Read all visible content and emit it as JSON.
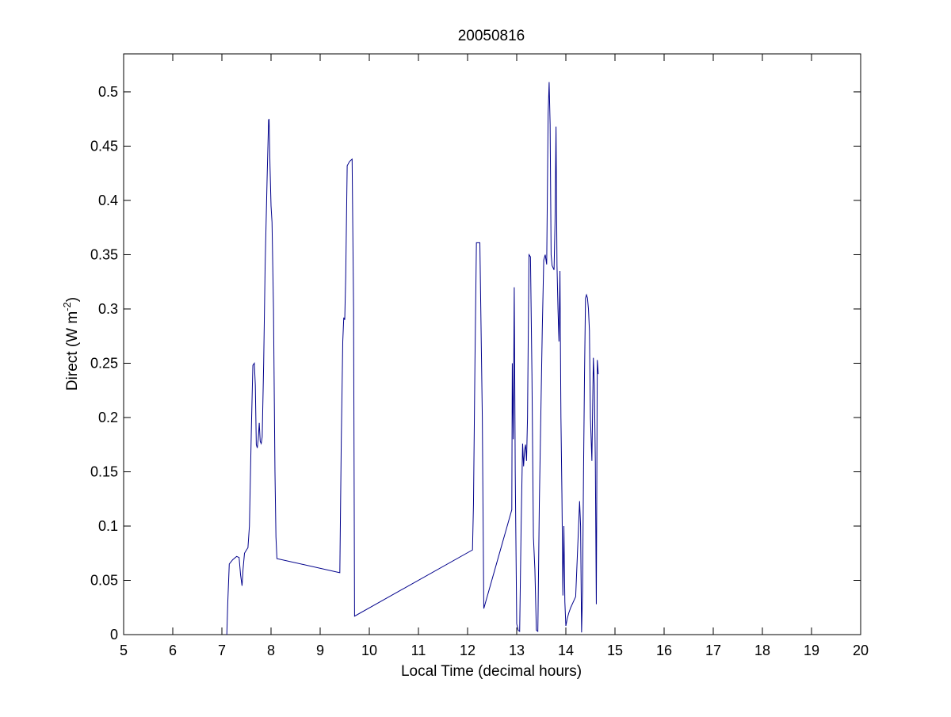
{
  "chart_data": {
    "type": "line",
    "title": "20050816",
    "xlabel": "Local Time (decimal hours)",
    "ylabel": {
      "prefix": "Direct (W m",
      "superscript": "-2",
      "suffix": ")"
    },
    "xlim": [
      5,
      20
    ],
    "ylim": [
      0,
      0.535
    ],
    "xticks": [
      5,
      6,
      7,
      8,
      9,
      10,
      11,
      12,
      13,
      14,
      15,
      16,
      17,
      18,
      19,
      20
    ],
    "yticks": [
      0,
      0.05,
      0.1,
      0.15,
      0.2,
      0.25,
      0.3,
      0.35,
      0.4,
      0.45,
      0.5
    ],
    "ytick_labels": [
      "0",
      "0.05",
      "0.1",
      "0.15",
      "0.2",
      "0.25",
      "0.3",
      "0.35",
      "0.4",
      "0.45",
      "0.5"
    ],
    "grid": false,
    "box": true,
    "series": [
      {
        "color": "#00008b",
        "x": [
          7.1,
          7.12,
          7.15,
          7.22,
          7.3,
          7.35,
          7.38,
          7.41,
          7.43,
          7.46,
          7.5,
          7.53,
          7.56,
          7.6,
          7.63,
          7.66,
          7.68,
          7.7,
          7.72,
          7.74,
          7.76,
          7.78,
          7.8,
          7.82,
          7.85,
          7.88,
          7.92,
          7.95,
          7.96,
          7.98,
          8.0,
          8.02,
          8.05,
          8.08,
          8.1,
          8.12,
          9.4,
          9.43,
          9.46,
          9.48,
          9.5,
          9.52,
          9.55,
          9.6,
          9.65,
          9.68,
          9.7,
          12.1,
          12.12,
          12.15,
          12.18,
          12.2,
          12.25,
          12.3,
          12.33,
          12.9,
          12.91,
          12.93,
          12.95,
          12.97,
          13.0,
          13.03,
          13.06,
          13.09,
          13.12,
          13.14,
          13.16,
          13.18,
          13.2,
          13.22,
          13.25,
          13.28,
          13.31,
          13.34,
          13.37,
          13.4,
          13.43,
          13.46,
          13.49,
          13.52,
          13.55,
          13.58,
          13.61,
          13.64,
          13.66,
          13.68,
          13.7,
          13.72,
          13.74,
          13.76,
          13.78,
          13.8,
          13.82,
          13.84,
          13.86,
          13.88,
          13.9,
          13.92,
          13.94,
          13.96,
          13.98,
          14.0,
          14.03,
          14.06,
          14.1,
          14.15,
          14.2,
          14.28,
          14.3,
          14.32,
          14.34,
          14.36,
          14.38,
          14.4,
          14.42,
          14.44,
          14.46,
          14.48,
          14.5,
          14.53,
          14.56,
          14.58,
          14.6,
          14.62,
          14.64,
          14.66
        ],
        "y": [
          0.0,
          0.03,
          0.065,
          0.069,
          0.072,
          0.071,
          0.055,
          0.045,
          0.06,
          0.075,
          0.078,
          0.08,
          0.1,
          0.19,
          0.248,
          0.25,
          0.23,
          0.175,
          0.172,
          0.18,
          0.195,
          0.178,
          0.176,
          0.182,
          0.25,
          0.34,
          0.42,
          0.474,
          0.475,
          0.43,
          0.395,
          0.38,
          0.3,
          0.15,
          0.09,
          0.07,
          0.057,
          0.18,
          0.27,
          0.292,
          0.29,
          0.33,
          0.432,
          0.436,
          0.438,
          0.3,
          0.017,
          0.078,
          0.12,
          0.25,
          0.361,
          0.361,
          0.361,
          0.2,
          0.024,
          0.115,
          0.25,
          0.18,
          0.32,
          0.15,
          0.01,
          0.004,
          0.003,
          0.1,
          0.176,
          0.155,
          0.17,
          0.175,
          0.16,
          0.2,
          0.35,
          0.348,
          0.24,
          0.09,
          0.06,
          0.004,
          0.003,
          0.12,
          0.2,
          0.28,
          0.345,
          0.35,
          0.341,
          0.48,
          0.509,
          0.47,
          0.35,
          0.34,
          0.338,
          0.336,
          0.38,
          0.468,
          0.34,
          0.3,
          0.27,
          0.335,
          0.2,
          0.13,
          0.036,
          0.1,
          0.03,
          0.008,
          0.015,
          0.02,
          0.025,
          0.03,
          0.035,
          0.123,
          0.1,
          0.002,
          0.04,
          0.15,
          0.24,
          0.31,
          0.313,
          0.31,
          0.3,
          0.28,
          0.2,
          0.16,
          0.255,
          0.23,
          0.16,
          0.028,
          0.253,
          0.24
        ],
        "_comment": "single blue series"
      }
    ]
  }
}
